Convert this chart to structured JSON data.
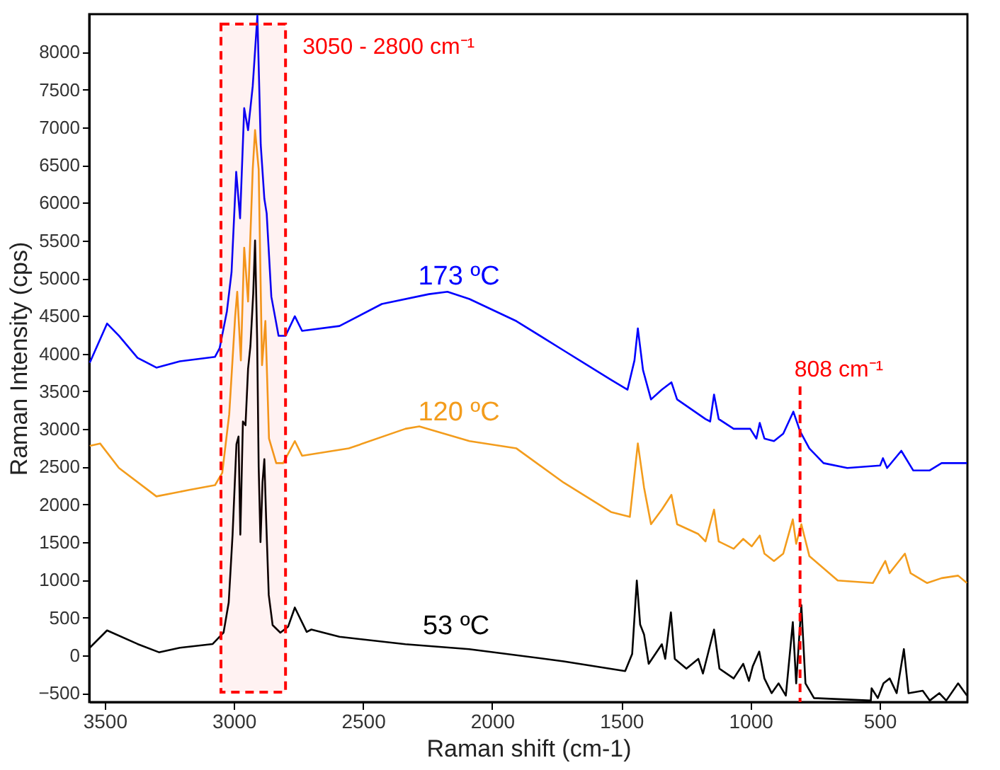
{
  "chart_data": {
    "type": "line",
    "xlabel": "Raman shift (cm-1)",
    "ylabel": "Raman Intensity (cps)",
    "xlim": [
      3560,
      160
    ],
    "xticks": [
      3500,
      3000,
      2500,
      2000,
      1500,
      1000,
      500
    ],
    "ylim": [
      -620,
      8500
    ],
    "yticks": [
      -500,
      0,
      500,
      1000,
      1500,
      2000,
      2500,
      3000,
      3500,
      4000,
      4500,
      5000,
      5500,
      6000,
      6500,
      7000,
      7500,
      8000
    ],
    "grid": false,
    "legend": false,
    "marker": "none",
    "line_style": "solid",
    "series": [
      {
        "name": "173 ºC",
        "color": "#0000ff",
        "x": [
          3558,
          3491,
          3445,
          3373,
          3300,
          3209,
          3073,
          3055,
          3027,
          3009,
          2991,
          2976,
          2960,
          2945,
          2927,
          2909,
          2896,
          2882,
          2873,
          2855,
          2827,
          2800,
          2764,
          2736,
          2591,
          2427,
          2245,
          2173,
          2088,
          1906,
          1723,
          1540,
          1476,
          1449,
          1436,
          1416,
          1385,
          1343,
          1306,
          1284,
          1174,
          1156,
          1141,
          1123,
          1065,
          1001,
          977,
          964,
          946,
          909,
          873,
          834,
          808,
          772,
          717,
          625,
          498,
          487,
          471,
          416,
          370,
          306,
          260,
          162
        ],
        "values": [
          3879,
          4398,
          4236,
          3944,
          3814,
          3898,
          3957,
          4073,
          4560,
          5080,
          6410,
          5793,
          7253,
          6962,
          7546,
          8480,
          6767,
          6053,
          5858,
          4755,
          4236,
          4236,
          4495,
          4301,
          4366,
          4658,
          4788,
          4820,
          4723,
          4430,
          4041,
          3652,
          3522,
          3911,
          4333,
          3782,
          3392,
          3522,
          3619,
          3392,
          3132,
          3100,
          3457,
          3132,
          3003,
          3003,
          2873,
          3081,
          2873,
          2840,
          2938,
          3230,
          2970,
          2743,
          2548,
          2483,
          2516,
          2613,
          2483,
          2711,
          2451,
          2451,
          2548,
          2548
        ]
      },
      {
        "name": "120 ºC",
        "color": "#f39c1c",
        "x": [
          3558,
          3518,
          3445,
          3300,
          3173,
          3073,
          3045,
          3018,
          2995,
          2987,
          2973,
          2960,
          2945,
          2927,
          2918,
          2904,
          2891,
          2878,
          2864,
          2836,
          2809,
          2764,
          2736,
          2555,
          2336,
          2282,
          2088,
          1906,
          1723,
          1540,
          1467,
          1436,
          1412,
          1385,
          1343,
          1306,
          1284,
          1202,
          1174,
          1141,
          1123,
          1065,
          1028,
          995,
          964,
          946,
          909,
          873,
          836,
          823,
          803,
          772,
          662,
          526,
          478,
          462,
          402,
          380,
          316,
          260,
          196,
          162
        ],
        "values": [
          2776,
          2808,
          2484,
          2107,
          2192,
          2256,
          2419,
          3197,
          4495,
          4820,
          3911,
          5404,
          4690,
          6443,
          6962,
          6443,
          3846,
          4431,
          2873,
          2548,
          2548,
          2840,
          2646,
          2743,
          3003,
          3035,
          2840,
          2743,
          2289,
          1900,
          1835,
          2808,
          2224,
          1737,
          1932,
          2127,
          1737,
          1608,
          1510,
          1932,
          1510,
          1413,
          1543,
          1445,
          1588,
          1348,
          1250,
          1348,
          1802,
          1478,
          1737,
          1316,
          991,
          958,
          1250,
          1088,
          1348,
          1088,
          958,
          1023,
          1056,
          958
        ]
      },
      {
        "name": "53 ºC",
        "color": "#000000",
        "x": [
          3558,
          3491,
          3373,
          3290,
          3209,
          3082,
          3040,
          3020,
          3005,
          2990,
          2982,
          2975,
          2965,
          2955,
          2945,
          2936,
          2925,
          2918,
          2910,
          2904,
          2897,
          2889,
          2882,
          2875,
          2865,
          2850,
          2820,
          2790,
          2764,
          2718,
          2700,
          2591,
          2336,
          2089,
          1723,
          1485,
          1458,
          1440,
          1427,
          1412,
          1394,
          1343,
          1330,
          1308,
          1293,
          1248,
          1202,
          1184,
          1141,
          1120,
          1065,
          1028,
          1006,
          991,
          966,
          946,
          918,
          891,
          863,
          836,
          823,
          803,
          787,
          754,
          534,
          531,
          507,
          485,
          461,
          434,
          406,
          388,
          333,
          306,
          269,
          242,
          196,
          162
        ],
        "values": [
          100,
          330,
          150,
          40,
          100,
          150,
          300,
          700,
          1600,
          2800,
          2900,
          1600,
          3100,
          3050,
          3800,
          4100,
          4800,
          5500,
          4200,
          2500,
          1500,
          2300,
          2600,
          1800,
          800,
          400,
          300,
          380,
          633,
          310,
          342,
          245,
          147,
          82,
          -80,
          -210,
          17,
          991,
          407,
          277,
          -113,
          147,
          -47,
          569,
          -47,
          -177,
          -47,
          -242,
          342,
          -177,
          -307,
          -113,
          -340,
          -145,
          50,
          -307,
          -502,
          -372,
          -534,
          439,
          -372,
          666,
          -372,
          -567,
          -600,
          -437,
          -567,
          -372,
          -307,
          -502,
          82,
          -502,
          -470,
          -600,
          -502,
          -600,
          -372,
          -534
        ]
      }
    ],
    "bands": [
      {
        "axis": "x",
        "from": 3050,
        "to": 2800,
        "label": "3050 - 2800 cm⁻¹",
        "color": "#ff0000"
      }
    ],
    "ref_lines": [
      {
        "axis": "x",
        "value": 808,
        "label": "808 cm⁻¹",
        "color": "#ff0000",
        "line_style": "dashed"
      }
    ]
  }
}
